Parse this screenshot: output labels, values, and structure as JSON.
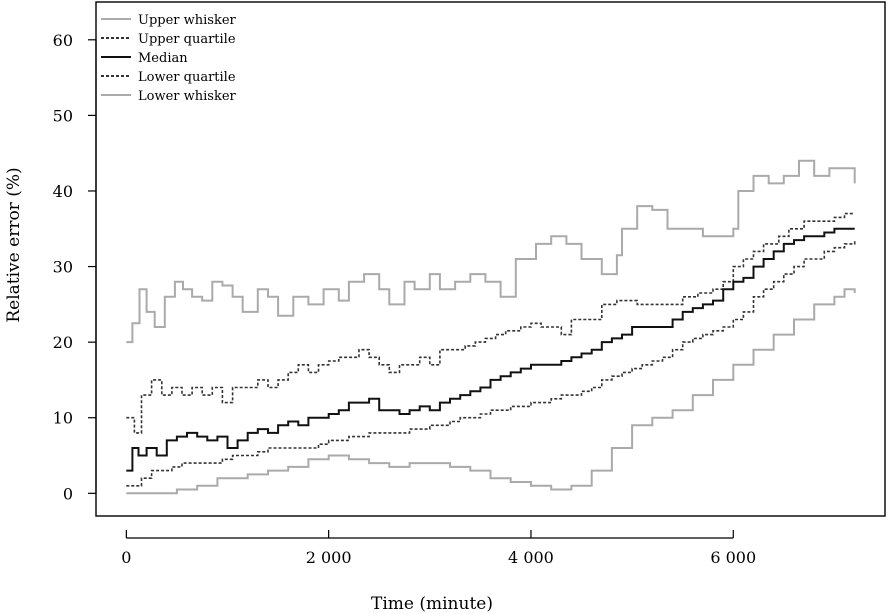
{
  "chart_data": {
    "type": "line",
    "title": "",
    "xlabel": "Time (minute)",
    "ylabel": "Relative error (%)",
    "xlim": [
      -300,
      7500
    ],
    "ylim": [
      -3,
      65
    ],
    "xticks": [
      0,
      2000,
      4000,
      6000
    ],
    "xtick_labels": [
      "0",
      "2 000",
      "4 000",
      "6 000"
    ],
    "yticks": [
      0,
      10,
      20,
      30,
      40,
      50,
      60
    ],
    "ytick_labels": [
      "0",
      "10",
      "20",
      "30",
      "40",
      "50",
      "60"
    ],
    "grid": false,
    "legend_position": "top-left",
    "series": [
      {
        "name": "Upper whisker",
        "color": "#aaaaaa",
        "style": "solid",
        "points": [
          [
            0,
            20
          ],
          [
            60,
            22.5
          ],
          [
            130,
            27
          ],
          [
            200,
            24
          ],
          [
            280,
            22
          ],
          [
            380,
            26
          ],
          [
            480,
            28
          ],
          [
            560,
            27
          ],
          [
            650,
            26
          ],
          [
            750,
            25.5
          ],
          [
            850,
            28
          ],
          [
            950,
            27.5
          ],
          [
            1050,
            26
          ],
          [
            1150,
            24
          ],
          [
            1300,
            27
          ],
          [
            1400,
            26
          ],
          [
            1500,
            23.5
          ],
          [
            1650,
            26
          ],
          [
            1800,
            25
          ],
          [
            1950,
            27
          ],
          [
            2100,
            25.5
          ],
          [
            2200,
            28
          ],
          [
            2350,
            29
          ],
          [
            2500,
            27
          ],
          [
            2600,
            25
          ],
          [
            2750,
            28
          ],
          [
            2850,
            27
          ],
          [
            3000,
            29
          ],
          [
            3100,
            27
          ],
          [
            3250,
            28
          ],
          [
            3400,
            29
          ],
          [
            3550,
            28
          ],
          [
            3700,
            26
          ],
          [
            3850,
            31
          ],
          [
            3950,
            31
          ],
          [
            4050,
            33
          ],
          [
            4200,
            34
          ],
          [
            4350,
            33
          ],
          [
            4500,
            31
          ],
          [
            4700,
            29
          ],
          [
            4850,
            31.5
          ],
          [
            4900,
            35
          ],
          [
            5050,
            38
          ],
          [
            5200,
            37.5
          ],
          [
            5350,
            35
          ],
          [
            5550,
            35
          ],
          [
            5700,
            34
          ],
          [
            5850,
            34
          ],
          [
            6000,
            35
          ],
          [
            6050,
            40
          ],
          [
            6200,
            42
          ],
          [
            6350,
            41
          ],
          [
            6500,
            42
          ],
          [
            6650,
            44
          ],
          [
            6800,
            42
          ],
          [
            6950,
            43
          ],
          [
            7100,
            43
          ],
          [
            7200,
            41
          ]
        ]
      },
      {
        "name": "Upper quartile",
        "color": "#333333",
        "style": "dotted",
        "points": [
          [
            0,
            10
          ],
          [
            80,
            8
          ],
          [
            150,
            13
          ],
          [
            250,
            15
          ],
          [
            350,
            13
          ],
          [
            450,
            14
          ],
          [
            550,
            13
          ],
          [
            650,
            14
          ],
          [
            750,
            13
          ],
          [
            850,
            14
          ],
          [
            950,
            12
          ],
          [
            1050,
            14
          ],
          [
            1150,
            14
          ],
          [
            1300,
            15
          ],
          [
            1400,
            14
          ],
          [
            1500,
            15
          ],
          [
            1600,
            16
          ],
          [
            1700,
            17
          ],
          [
            1800,
            16
          ],
          [
            1900,
            17
          ],
          [
            2000,
            17.5
          ],
          [
            2100,
            18
          ],
          [
            2200,
            18
          ],
          [
            2300,
            19
          ],
          [
            2400,
            18
          ],
          [
            2500,
            17
          ],
          [
            2600,
            16
          ],
          [
            2700,
            17
          ],
          [
            2800,
            17
          ],
          [
            2900,
            18
          ],
          [
            3000,
            17
          ],
          [
            3100,
            19
          ],
          [
            3200,
            19
          ],
          [
            3350,
            19.5
          ],
          [
            3450,
            20
          ],
          [
            3550,
            20.5
          ],
          [
            3650,
            21
          ],
          [
            3750,
            21.5
          ],
          [
            3900,
            22
          ],
          [
            4000,
            22.5
          ],
          [
            4100,
            22
          ],
          [
            4200,
            22
          ],
          [
            4300,
            21
          ],
          [
            4400,
            23
          ],
          [
            4550,
            23
          ],
          [
            4700,
            25
          ],
          [
            4850,
            25.5
          ],
          [
            4950,
            25.5
          ],
          [
            5050,
            25
          ],
          [
            5200,
            25
          ],
          [
            5350,
            25
          ],
          [
            5500,
            26
          ],
          [
            5650,
            26.5
          ],
          [
            5800,
            27
          ],
          [
            5900,
            28
          ],
          [
            6000,
            30
          ],
          [
            6100,
            31
          ],
          [
            6200,
            32
          ],
          [
            6300,
            33
          ],
          [
            6450,
            34
          ],
          [
            6550,
            35
          ],
          [
            6700,
            36
          ],
          [
            6850,
            36
          ],
          [
            7000,
            36.5
          ],
          [
            7100,
            37
          ],
          [
            7200,
            37
          ]
        ]
      },
      {
        "name": "Median",
        "color": "#111111",
        "style": "solid",
        "points": [
          [
            0,
            3
          ],
          [
            60,
            6
          ],
          [
            120,
            5
          ],
          [
            200,
            6
          ],
          [
            300,
            5
          ],
          [
            400,
            7
          ],
          [
            500,
            7.5
          ],
          [
            600,
            8
          ],
          [
            700,
            7.5
          ],
          [
            800,
            7
          ],
          [
            900,
            7.5
          ],
          [
            1000,
            6
          ],
          [
            1100,
            7
          ],
          [
            1200,
            8
          ],
          [
            1300,
            8.5
          ],
          [
            1400,
            8
          ],
          [
            1500,
            9
          ],
          [
            1600,
            9.5
          ],
          [
            1700,
            9
          ],
          [
            1800,
            10
          ],
          [
            1900,
            10
          ],
          [
            2000,
            10.5
          ],
          [
            2100,
            11
          ],
          [
            2200,
            12
          ],
          [
            2300,
            12
          ],
          [
            2400,
            12.5
          ],
          [
            2500,
            11
          ],
          [
            2600,
            11
          ],
          [
            2700,
            10.5
          ],
          [
            2800,
            11
          ],
          [
            2900,
            11.5
          ],
          [
            3000,
            11
          ],
          [
            3100,
            12
          ],
          [
            3200,
            12.5
          ],
          [
            3300,
            13
          ],
          [
            3400,
            13.5
          ],
          [
            3500,
            14
          ],
          [
            3600,
            15
          ],
          [
            3700,
            15.5
          ],
          [
            3800,
            16
          ],
          [
            3900,
            16.5
          ],
          [
            4000,
            17
          ],
          [
            4100,
            17
          ],
          [
            4200,
            17
          ],
          [
            4300,
            17.5
          ],
          [
            4400,
            18
          ],
          [
            4500,
            18.5
          ],
          [
            4600,
            19
          ],
          [
            4700,
            20
          ],
          [
            4800,
            20.5
          ],
          [
            4900,
            21
          ],
          [
            5000,
            22
          ],
          [
            5100,
            22
          ],
          [
            5200,
            22
          ],
          [
            5300,
            22
          ],
          [
            5400,
            23
          ],
          [
            5500,
            24
          ],
          [
            5600,
            24.5
          ],
          [
            5700,
            25
          ],
          [
            5800,
            25.5
          ],
          [
            5900,
            27
          ],
          [
            6000,
            28
          ],
          [
            6100,
            28.5
          ],
          [
            6200,
            30
          ],
          [
            6300,
            31
          ],
          [
            6400,
            32
          ],
          [
            6500,
            33
          ],
          [
            6600,
            33.5
          ],
          [
            6700,
            34
          ],
          [
            6800,
            34
          ],
          [
            6900,
            34.5
          ],
          [
            7000,
            35
          ],
          [
            7100,
            35
          ],
          [
            7200,
            35
          ]
        ]
      },
      {
        "name": "Lower quartile",
        "color": "#333333",
        "style": "dotted",
        "points": [
          [
            0,
            1
          ],
          [
            80,
            1
          ],
          [
            150,
            2
          ],
          [
            250,
            3
          ],
          [
            350,
            3
          ],
          [
            450,
            3.5
          ],
          [
            550,
            4
          ],
          [
            650,
            4
          ],
          [
            750,
            4
          ],
          [
            850,
            4
          ],
          [
            950,
            4.5
          ],
          [
            1050,
            5
          ],
          [
            1150,
            5
          ],
          [
            1300,
            5.5
          ],
          [
            1400,
            6
          ],
          [
            1500,
            6
          ],
          [
            1600,
            6
          ],
          [
            1700,
            6
          ],
          [
            1800,
            6
          ],
          [
            1900,
            6.5
          ],
          [
            2000,
            7
          ],
          [
            2100,
            7
          ],
          [
            2200,
            7.5
          ],
          [
            2300,
            7.5
          ],
          [
            2400,
            8
          ],
          [
            2500,
            8
          ],
          [
            2600,
            8
          ],
          [
            2700,
            8
          ],
          [
            2800,
            8.5
          ],
          [
            2900,
            8.5
          ],
          [
            3000,
            9
          ],
          [
            3100,
            9
          ],
          [
            3200,
            9.5
          ],
          [
            3300,
            10
          ],
          [
            3400,
            10
          ],
          [
            3500,
            10.5
          ],
          [
            3600,
            11
          ],
          [
            3700,
            11
          ],
          [
            3800,
            11.5
          ],
          [
            3900,
            11.5
          ],
          [
            4000,
            12
          ],
          [
            4100,
            12
          ],
          [
            4200,
            12.5
          ],
          [
            4300,
            13
          ],
          [
            4400,
            13
          ],
          [
            4500,
            13.5
          ],
          [
            4600,
            14
          ],
          [
            4700,
            15
          ],
          [
            4800,
            15.5
          ],
          [
            4900,
            16
          ],
          [
            5000,
            16.5
          ],
          [
            5100,
            17
          ],
          [
            5200,
            17.5
          ],
          [
            5300,
            18
          ],
          [
            5400,
            19
          ],
          [
            5500,
            20
          ],
          [
            5600,
            20.5
          ],
          [
            5700,
            21
          ],
          [
            5800,
            21.5
          ],
          [
            5900,
            22
          ],
          [
            6000,
            23
          ],
          [
            6100,
            24
          ],
          [
            6200,
            26
          ],
          [
            6300,
            27
          ],
          [
            6400,
            28
          ],
          [
            6500,
            29
          ],
          [
            6600,
            30
          ],
          [
            6700,
            31
          ],
          [
            6800,
            31
          ],
          [
            6900,
            32
          ],
          [
            7000,
            32.5
          ],
          [
            7100,
            33
          ],
          [
            7200,
            33.5
          ]
        ]
      },
      {
        "name": "Lower whisker",
        "color": "#aaaaaa",
        "style": "solid",
        "points": [
          [
            0,
            0
          ],
          [
            200,
            0
          ],
          [
            400,
            0
          ],
          [
            500,
            0.5
          ],
          [
            700,
            1
          ],
          [
            900,
            2
          ],
          [
            1000,
            2
          ],
          [
            1200,
            2.5
          ],
          [
            1400,
            3
          ],
          [
            1600,
            3.5
          ],
          [
            1800,
            4.5
          ],
          [
            2000,
            5
          ],
          [
            2200,
            4.5
          ],
          [
            2400,
            4
          ],
          [
            2600,
            3.5
          ],
          [
            2800,
            4
          ],
          [
            3000,
            4
          ],
          [
            3200,
            3.5
          ],
          [
            3400,
            3
          ],
          [
            3600,
            2
          ],
          [
            3800,
            1.5
          ],
          [
            4000,
            1
          ],
          [
            4200,
            0.5
          ],
          [
            4400,
            1
          ],
          [
            4600,
            3
          ],
          [
            4800,
            6
          ],
          [
            5000,
            9
          ],
          [
            5200,
            10
          ],
          [
            5400,
            11
          ],
          [
            5600,
            13
          ],
          [
            5800,
            15
          ],
          [
            6000,
            17
          ],
          [
            6200,
            19
          ],
          [
            6400,
            21
          ],
          [
            6600,
            23
          ],
          [
            6800,
            25
          ],
          [
            7000,
            26
          ],
          [
            7100,
            27
          ],
          [
            7200,
            26.5
          ]
        ]
      }
    ]
  }
}
